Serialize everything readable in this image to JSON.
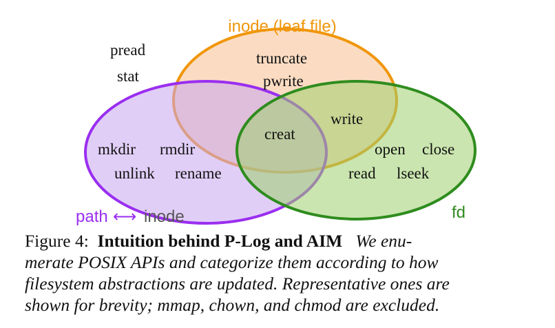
{
  "diagram": {
    "sets": {
      "inode": {
        "label": "inode (leaf file)",
        "color": "#f0960a",
        "fill": "#f7c090"
      },
      "path": {
        "label": "path",
        "color": "#9a2ef0",
        "fill": "#c9a6f0"
      },
      "fd": {
        "label": "fd",
        "color": "#2e8c1e",
        "fill": "#9ecf6e"
      },
      "path_relation": {
        "arrow": "⟷",
        "target": "inode",
        "target_color": "#555555"
      }
    },
    "apis": {
      "outside": [
        "pread",
        "stat"
      ],
      "inode_only": [
        "truncate",
        "pwrite"
      ],
      "inode_fd": [
        "write"
      ],
      "all_three": [
        "creat"
      ],
      "path_only": [
        "mkdir",
        "rmdir",
        "unlink",
        "rename"
      ],
      "fd_only": [
        "open",
        "close",
        "read",
        "lseek"
      ]
    }
  },
  "caption": {
    "figure_label": "Figure 4:",
    "title": "Intuition behind P-Log and AIM",
    "lines": [
      "We enu-",
      "merate POSIX APIs and categorize them according to how",
      "filesystem abstractions are updated. Representative ones are",
      "shown for brevity; mmap, chown, and chmod are excluded."
    ]
  }
}
